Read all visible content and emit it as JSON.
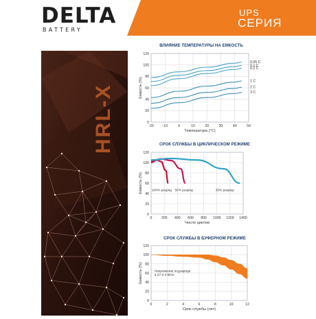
{
  "brand": {
    "logo_delta": "DELTA",
    "logo_battery": "BATTERY",
    "series_ups": "UPS",
    "series_label": "СЕРИЯ",
    "vertical_text": "HRL-X",
    "brand_color": "#ef7d1f",
    "navy": "#1c3c6e"
  },
  "chart_data": [
    {
      "type": "line",
      "title": "ВЛИЯНИЕ ТЕМПЕРАТУРЫ НА ЕМКОСТЬ",
      "xlabel": "Температура (°C)",
      "ylabel": "Емкость (%)",
      "xlim": [
        -20,
        50
      ],
      "ylim": [
        0,
        120
      ],
      "xticks": [
        "-20",
        "-10",
        "0",
        "10",
        "20",
        "30",
        "40",
        "50"
      ],
      "yticks": [
        "0",
        "20",
        "40",
        "60",
        "80",
        "100",
        "120"
      ],
      "grid": true,
      "series": [
        {
          "name": "0,05 C",
          "x": [
            -20,
            0,
            20,
            40,
            45
          ],
          "values": [
            78,
            88,
            96,
            103,
            105
          ]
        },
        {
          "name": "0,1 C",
          "x": [
            -20,
            0,
            20,
            40,
            45
          ],
          "values": [
            71,
            82,
            90,
            97,
            99
          ]
        },
        {
          "name": "0,2 C",
          "x": [
            -20,
            0,
            20,
            40,
            45
          ],
          "values": [
            64,
            76,
            85,
            92,
            94
          ]
        },
        {
          "name": "1 C",
          "x": [
            -20,
            0,
            20,
            40,
            45
          ],
          "values": [
            43,
            54,
            63,
            70,
            72
          ]
        },
        {
          "name": "2 C",
          "x": [
            -20,
            0,
            20,
            40,
            45
          ],
          "values": [
            33,
            43,
            52,
            59,
            61
          ]
        },
        {
          "name": "3 C",
          "x": [
            -20,
            0,
            20,
            40,
            45
          ],
          "values": [
            24,
            34,
            43,
            50,
            52
          ]
        }
      ]
    },
    {
      "type": "line",
      "title": "СРОК СЛУЖБЫ В ЦИКЛИЧЕСКОМ РЕЖИМЕ",
      "xlabel": "Число циклов",
      "ylabel": "Емкость (%)",
      "xlim": [
        0,
        1400
      ],
      "ylim": [
        0,
        120
      ],
      "xticks": [
        "0",
        "200",
        "400",
        "600",
        "800",
        "1000",
        "1200",
        "1400"
      ],
      "yticks": [
        "0",
        "20",
        "40",
        "60",
        "80",
        "100",
        "120"
      ],
      "grid": true,
      "series": [
        {
          "name": "100% разряд",
          "color": "#c8102e",
          "x": [
            0,
            80,
            150,
            220,
            260
          ],
          "values": [
            100,
            105,
            102,
            85,
            60
          ]
        },
        {
          "name": "50% разряд",
          "color": "#c2185b",
          "x": [
            0,
            150,
            300,
            450,
            520
          ],
          "values": [
            102,
            107,
            104,
            88,
            60
          ]
        },
        {
          "name": "30% разряд",
          "color": "#2fa3c7",
          "x": [
            0,
            300,
            700,
            1100,
            1350
          ],
          "values": [
            105,
            108,
            105,
            88,
            60
          ]
        }
      ],
      "annotations": [
        "100% разряд",
        "50% разряд",
        "30% разряд"
      ]
    },
    {
      "type": "area",
      "title": "СРОК СЛУЖБЫ В БУФЕРНОМ РЕЖИМЕ",
      "xlabel": "Срок службы (лет)",
      "ylabel": "Емкость (%)",
      "xlim": [
        0,
        12
      ],
      "ylim": [
        0,
        120
      ],
      "xticks": [
        "0",
        "2",
        "4",
        "6",
        "8",
        "10",
        "12"
      ],
      "yticks": [
        "0",
        "20",
        "40",
        "60",
        "80",
        "100",
        "120"
      ],
      "grid": true,
      "band": {
        "x": [
          0,
          2,
          4,
          6,
          7,
          8,
          9,
          10,
          11,
          12
        ],
        "upper": [
          100,
          100,
          100,
          100,
          100,
          98,
          94,
          88,
          80,
          70
        ],
        "lower": [
          100,
          98,
          96,
          94,
          90,
          84,
          77,
          68,
          58,
          48
        ]
      },
      "annotation": [
        "Напряжение подзаряда",
        "2,27-2,3 В/эл"
      ]
    }
  ]
}
